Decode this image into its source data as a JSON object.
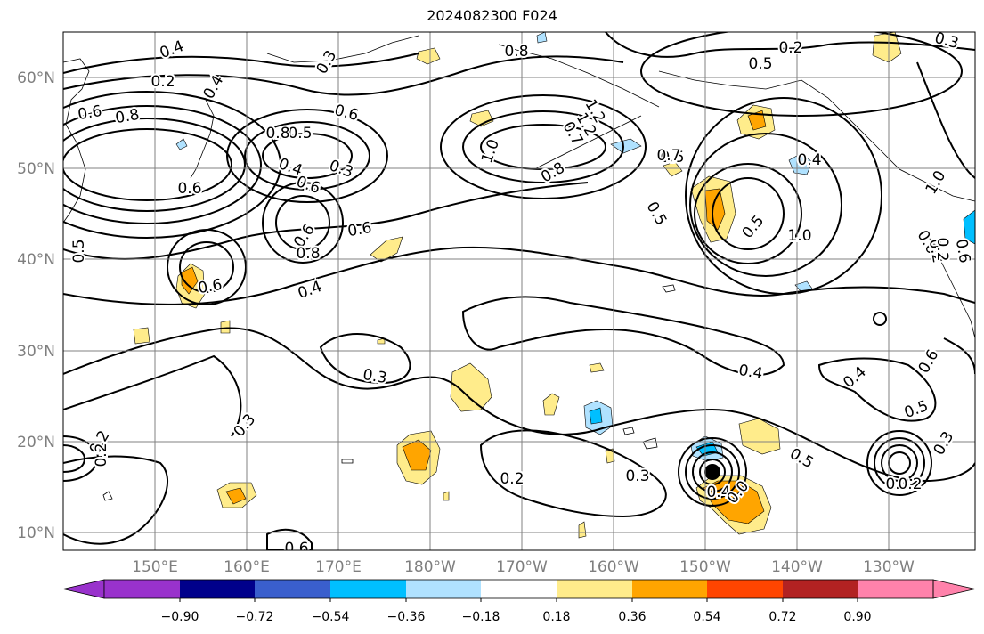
{
  "title": "2024082300 F024",
  "map": {
    "lat_labels": [
      "60°N",
      "50°N",
      "40°N",
      "30°N",
      "20°N",
      "10°N"
    ],
    "lon_labels": [
      "150°E",
      "160°E",
      "170°E",
      "180°W",
      "170°W",
      "160°W",
      "150°W",
      "140°W",
      "130°W"
    ],
    "contour_labels": [
      "0.4",
      "0.3",
      "0.8",
      "0.2",
      "0.3",
      "0.4",
      "0.2",
      "0.5",
      "0.6",
      "0.8",
      "1.2",
      "0.6",
      "1.2",
      "0.7",
      "0.5",
      "0.8",
      "1.0",
      "0.8",
      "0.5",
      "0.4",
      "0.3",
      "0.6",
      "0.4",
      "0.6",
      "1.0",
      "0.5",
      "0.7",
      "0.5",
      "0.6",
      "1.0",
      "0.5",
      "0.6",
      "0.8",
      "0.6",
      "0.4",
      "0.6",
      "0.3",
      "0.3",
      "0.4",
      "0.4",
      "0.6",
      "0.5",
      "0.2",
      "0.2",
      "0.2",
      "0.3",
      "0.5",
      "0.3",
      "0.4",
      "0.0",
      "0.6",
      "0.2",
      "0.6",
      "0.2",
      "0.3",
      "0.2"
    ]
  },
  "colorbar": {
    "colors": [
      "#9932cc",
      "#00008b",
      "#3a5fcd",
      "#00bfff",
      "#b0e2ff",
      "#ffffff",
      "#ffec8b",
      "#ffa500",
      "#ff4500",
      "#b22222",
      "#ff82ab"
    ],
    "tick_labels": [
      "−0.90",
      "−0.72",
      "−0.54",
      "−0.36",
      "−0.18",
      "0.18",
      "0.36",
      "0.54",
      "0.72",
      "0.90"
    ]
  }
}
